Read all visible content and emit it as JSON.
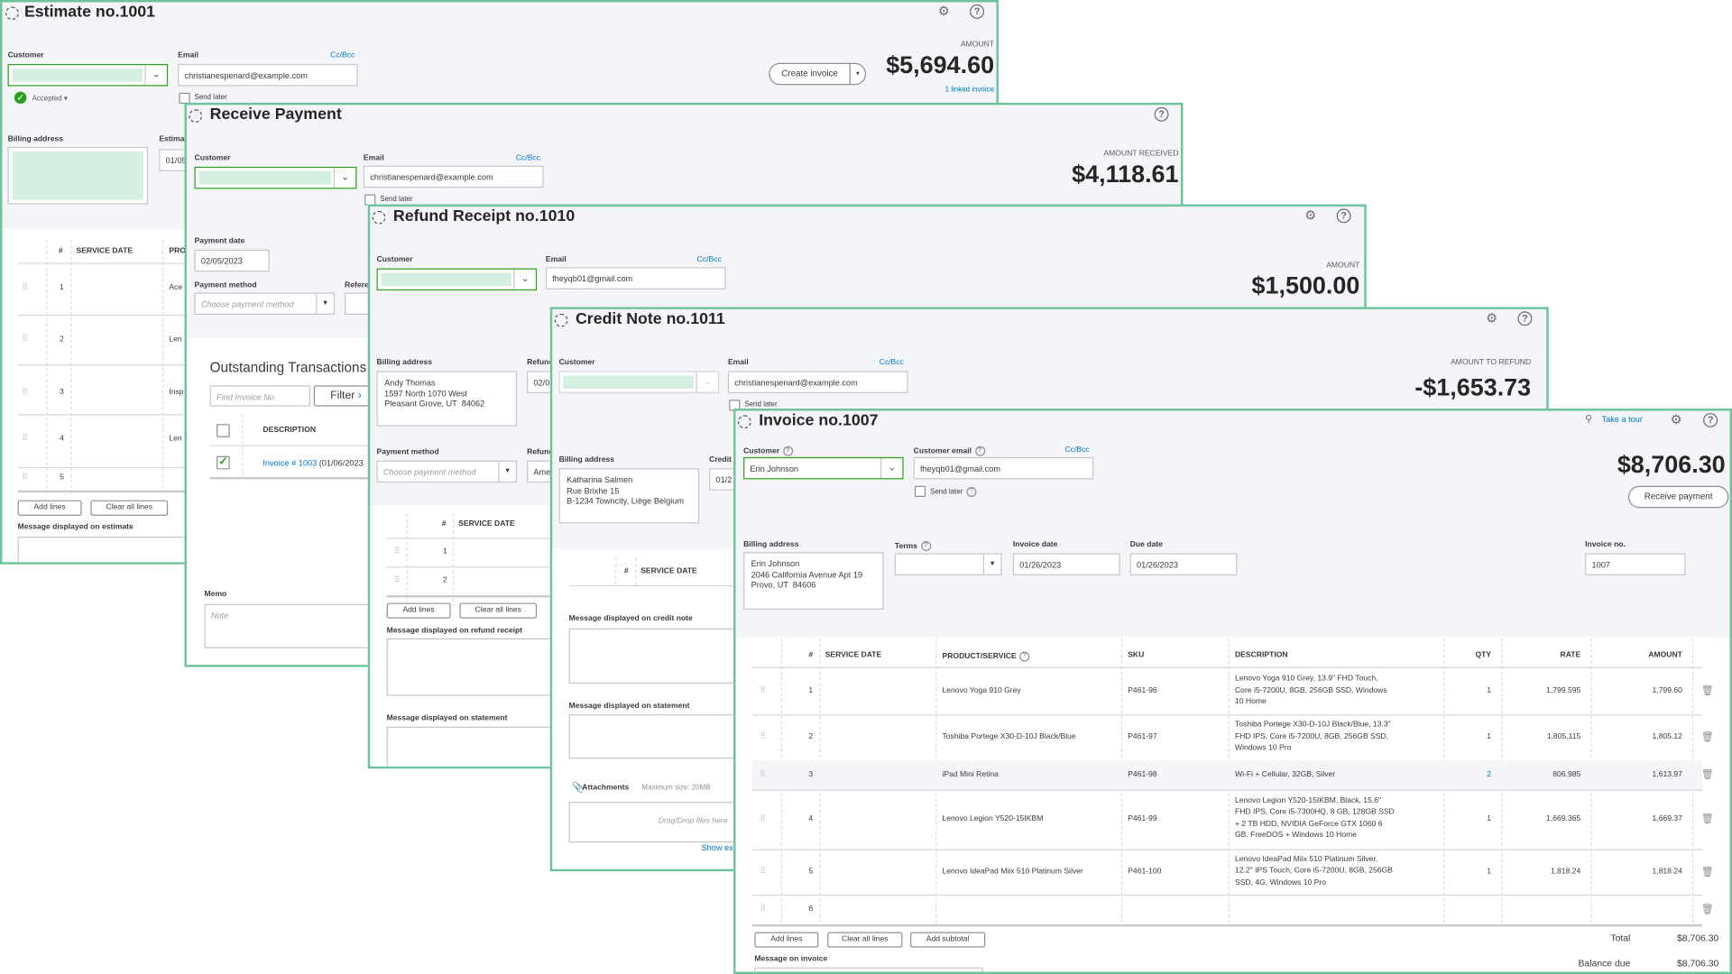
{
  "colors": {
    "accent": "#6dc49a",
    "link": "#0077c5",
    "success": "#2ca01c"
  },
  "estimate": {
    "title": "Estimate no.1001",
    "customer_label": "Customer",
    "email_label": "Email",
    "ccbcc": "Cc/Bcc",
    "email": "christianespenard@example.com",
    "send_later": "Send later",
    "status": "Accepted ▾",
    "billing_label": "Billing address",
    "date_label": "Estimat",
    "date_partial": "01/05",
    "amount_label": "AMOUNT",
    "amount": "$5,694.60",
    "create_invoice": "Create invoice",
    "linked": "1 linked invoice",
    "columns": [
      "#",
      "SERVICE DATE",
      "PRO"
    ],
    "rows": [
      {
        "n": "1",
        "p": "Ace"
      },
      {
        "n": "2",
        "p": "Len"
      },
      {
        "n": "3",
        "p": "Insp"
      },
      {
        "n": "4",
        "p": "Len"
      },
      {
        "n": "5",
        "p": ""
      }
    ],
    "add_lines": "Add lines",
    "clear_lines": "Clear all lines",
    "message_label": "Message displayed on estimate",
    "icons": [
      "gear-icon",
      "help-icon"
    ]
  },
  "payment": {
    "title": "Receive Payment",
    "customer_label": "Customer",
    "email_label": "Email",
    "ccbcc": "Cc/Bcc",
    "email": "christianespenard@example.com",
    "send_later": "Send later",
    "amount_label": "AMOUNT RECEIVED",
    "amount": "$4,118.61",
    "date_label": "Payment date",
    "date": "02/05/2023",
    "method_label": "Payment method",
    "method_placeholder": "Choose payment method",
    "ref_label": "Refere",
    "outstanding": "Outstanding Transactions",
    "find_placeholder": "Find Invoice No.",
    "filter": "Filter",
    "desc_col": "DESCRIPTION",
    "invoice_link": "Invoice # 1003",
    "invoice_date": " (01/06/2023",
    "memo_label": "Memo",
    "memo_placeholder": "Note"
  },
  "refund": {
    "title": "Refund Receipt no.1010",
    "customer_label": "Customer",
    "email_label": "Email",
    "ccbcc": "Cc/Bcc",
    "email": "fheyqb01@gmail.com",
    "amount_label": "AMOUNT",
    "amount": "$1,500.00",
    "billing_label": "Billing address",
    "billing": "Andy Thomas\n1597 North 1070 West\nPleasant Grove, UT  84062",
    "refund_date_label": "Refund",
    "refund_date": "02/0",
    "method_label": "Payment method",
    "method_placeholder": "Choose payment method",
    "refund_from_label": "Refund",
    "refund_from": "Ame",
    "columns": [
      "#",
      "SERVICE DATE"
    ],
    "rows": [
      "1",
      "2"
    ],
    "add_lines": "Add lines",
    "clear_lines": "Clear all lines",
    "msg_label": "Message displayed on refund receipt",
    "stmt_label": "Message displayed on statement"
  },
  "credit": {
    "title": "Credit Note no.1011",
    "customer_label": "Customer",
    "email_label": "Email",
    "ccbcc": "Cc/Bcc",
    "email": "christianespenard@example.com",
    "send_later": "Send later",
    "amount_label": "AMOUNT TO REFUND",
    "amount": "-$1,653.73",
    "billing_label": "Billing address",
    "billing": "Katharina Salmen\nRue Brixhe 15\nB-1234 Towncity, Liège Belgium",
    "date_label": "Credit",
    "date": "01/2",
    "columns": [
      "#",
      "SERVICE DATE"
    ],
    "msg_label": "Message displayed on credit note",
    "stmt_label": "Message displayed on statement",
    "attachments": "Attachments",
    "max_size": "Maximum size: 20MB",
    "drop": "Drag/Drop files here",
    "show": "Show ex"
  },
  "invoice": {
    "title": "Invoice no.1007",
    "tour": "Take a tour",
    "customer_label": "Customer",
    "customer": "Erin Johnson",
    "email_label": "Customer email",
    "email": "fheyqb01@gmail.com",
    "ccbcc": "Cc/Bcc",
    "send_later": "Send later",
    "amount": "$8,706.30",
    "receive_payment": "Receive payment",
    "billing_label": "Billing address",
    "billing": "Erin Johnson\n2046 California Avenue Apt 19\nProvo, UT  84606",
    "terms_label": "Terms",
    "invoice_date_label": "Invoice date",
    "invoice_date": "01/26/2023",
    "due_date_label": "Due date",
    "due_date": "01/26/2023",
    "invoice_no_label": "Invoice no.",
    "invoice_no": "1007",
    "columns": {
      "num": "#",
      "service_date": "SERVICE DATE",
      "product": "PRODUCT/SERVICE",
      "sku": "SKU",
      "description": "DESCRIPTION",
      "qty": "QTY",
      "rate": "RATE",
      "amount": "AMOUNT"
    },
    "rows": [
      {
        "n": "1",
        "product": "Lenovo Yoga 910 Grey",
        "sku": "P461-96",
        "desc": "Lenovo Yoga 910 Grey, 13.9\" FHD Touch,\nCore i5-7200U, 8GB, 256GB SSD, Windows\n10 Home",
        "qty": "1",
        "rate": "1,799.595",
        "amount": "1,799.60"
      },
      {
        "n": "2",
        "product": "Toshiba Portege X30-D-10J Black/Blue",
        "sku": "P461-97",
        "desc": "Toshiba Portege X30-D-10J Black/Blue, 13.3\"\nFHD IPS, Core i5-7200U, 8GB, 256GB SSD,\nWindows 10 Pro",
        "qty": "1",
        "rate": "1,805.115",
        "amount": "1,805.12"
      },
      {
        "n": "3",
        "product": "iPad Mini Retina",
        "sku": "P461-98",
        "desc": "Wi-Fi + Cellular, 32GB, Silver",
        "qty": "2",
        "rate": "806.985",
        "amount": "1,613.97"
      },
      {
        "n": "4",
        "product": "Lenovo Legion Y520-15IKBM",
        "sku": "P461-99",
        "desc": "Lenovo Legion Y520-15IKBM, Black, 15.6\"\nFHD IPS, Core i5-7300HQ, 8 GB, 128GB SSD\n+ 2 TB HDD, NVIDIA GeForce GTX 1060 6\nGB, FreeDOS + Windows 10 Home",
        "qty": "1",
        "rate": "1,669.365",
        "amount": "1,669.37"
      },
      {
        "n": "5",
        "product": "Lenovo IdeaPad Miix 510 Platinum Silver",
        "sku": "P461-100",
        "desc": "Lenovo IdeaPad Miix 510 Platinum Silver,\n12.2\" IPS Touch, Core i5-7200U, 8GB, 256GB\nSSD, 4G, Windows 10 Pro",
        "qty": "1",
        "rate": "1,818.24",
        "amount": "1,818.24"
      },
      {
        "n": "6",
        "product": "",
        "sku": "",
        "desc": "",
        "qty": "",
        "rate": "",
        "amount": ""
      }
    ],
    "add_lines": "Add lines",
    "clear_lines": "Clear all lines",
    "add_subtotal": "Add subtotal",
    "message_label": "Message on invoice",
    "total_label": "Total",
    "total": "$8,706.30",
    "balance_label": "Balance due",
    "balance": "$8,706.30"
  }
}
